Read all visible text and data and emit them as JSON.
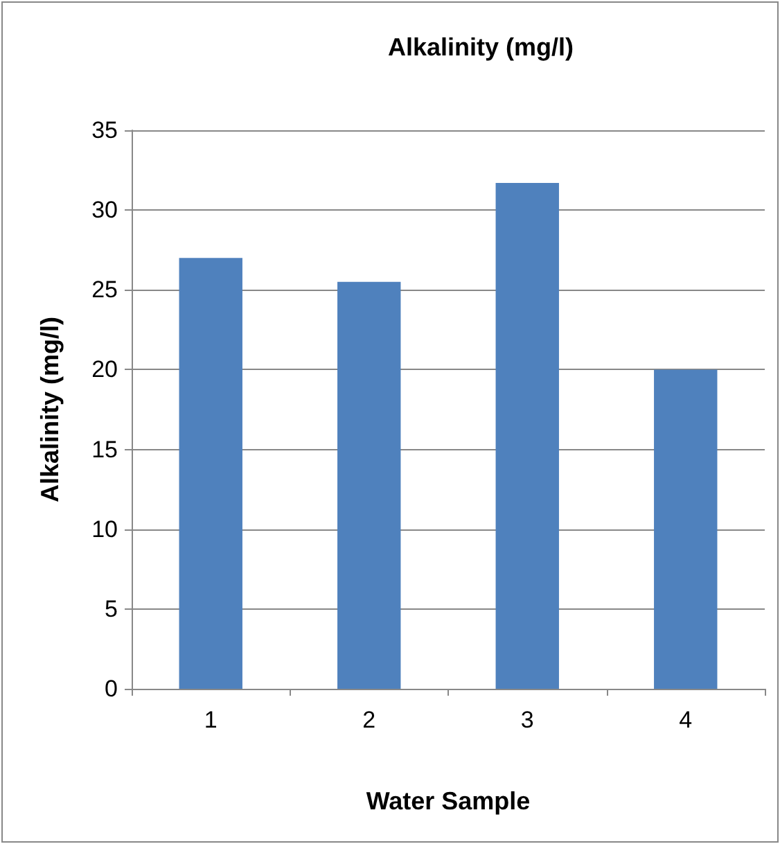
{
  "chart_data": {
    "type": "bar",
    "title": "Alkalinity (mg/l)",
    "xlabel": "Water Sample",
    "ylabel": "Alkalinity (mg/l)",
    "categories": [
      "1",
      "2",
      "3",
      "4"
    ],
    "series": [
      {
        "color": "#4f81bd",
        "values": [
          27,
          25.5,
          31.7,
          20
        ]
      }
    ],
    "ylim": [
      0,
      35
    ],
    "yticks": [
      0,
      5,
      10,
      15,
      20,
      25,
      30,
      35
    ],
    "grid": "y"
  }
}
